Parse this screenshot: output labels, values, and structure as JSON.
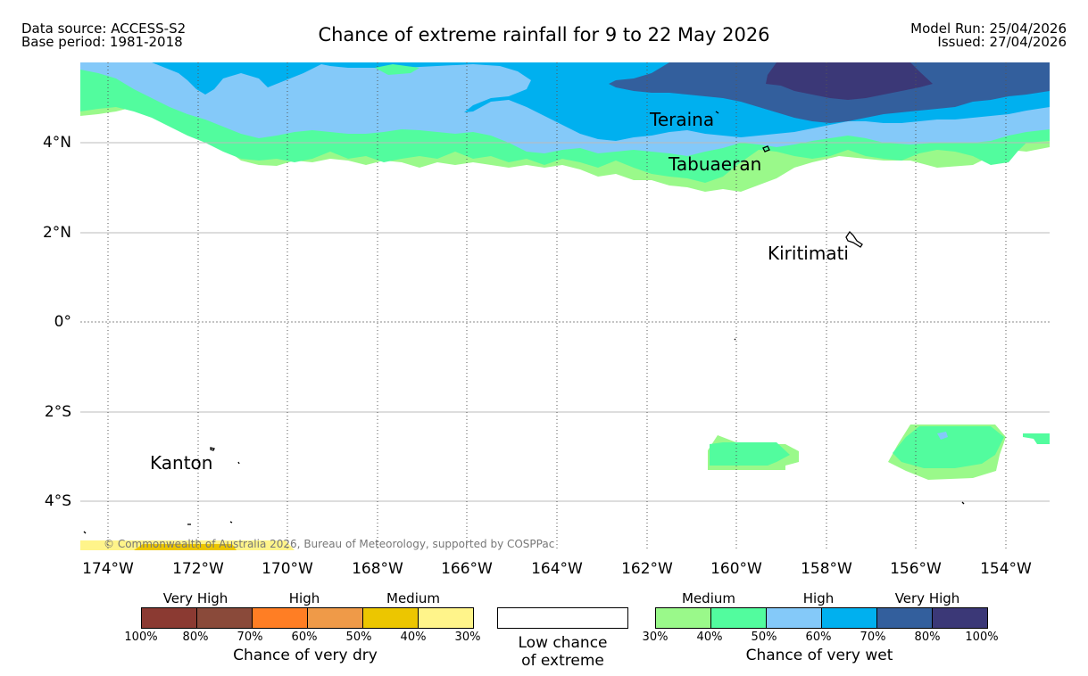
{
  "header": {
    "data_source": "Data source: ACCESS-S2",
    "base_period": "Base period: 1981-2018",
    "title": "Chance of extreme rainfall for 9 to 22 May 2026",
    "model_run": "Model Run: 25/04/2026",
    "issued": "Issued: 27/04/2026"
  },
  "map": {
    "lat_labels": [
      "4°N",
      "2°N",
      "0°",
      "2°S",
      "4°S"
    ],
    "lon_labels": [
      "174°W",
      "172°W",
      "170°W",
      "168°W",
      "166°W",
      "164°W",
      "162°W",
      "160°W",
      "158°W",
      "156°W",
      "154°W"
    ],
    "places": [
      "Teraina",
      "Tabuaeran",
      "Kiritimati",
      "Kanton"
    ],
    "copyright": "© Commonwealth of Australia 2026, Bureau of Meteorology, supported by COSPPac"
  },
  "legend": {
    "dry": {
      "categories": [
        "Very High",
        "High",
        "Medium"
      ],
      "ticks": [
        "100%",
        "80%",
        "70%",
        "60%",
        "50%",
        "40%",
        "30%"
      ],
      "caption": "Chance of very dry",
      "colors": [
        "#8b3a32",
        "#8a4a3a",
        "#ff7e24",
        "#ef9a48",
        "#ecc600",
        "#fff48a"
      ]
    },
    "low": {
      "line1": "Low chance",
      "line2": "of extreme"
    },
    "wet": {
      "categories": [
        "Medium",
        "High",
        "Very High"
      ],
      "ticks": [
        "30%",
        "40%",
        "50%",
        "60%",
        "70%",
        "80%",
        "100%"
      ],
      "caption": "Chance of very wet",
      "colors": [
        "#9af98a",
        "#52fc9e",
        "#84c9f9",
        "#00b0ef",
        "#335f9d",
        "#3b3877"
      ]
    }
  }
}
